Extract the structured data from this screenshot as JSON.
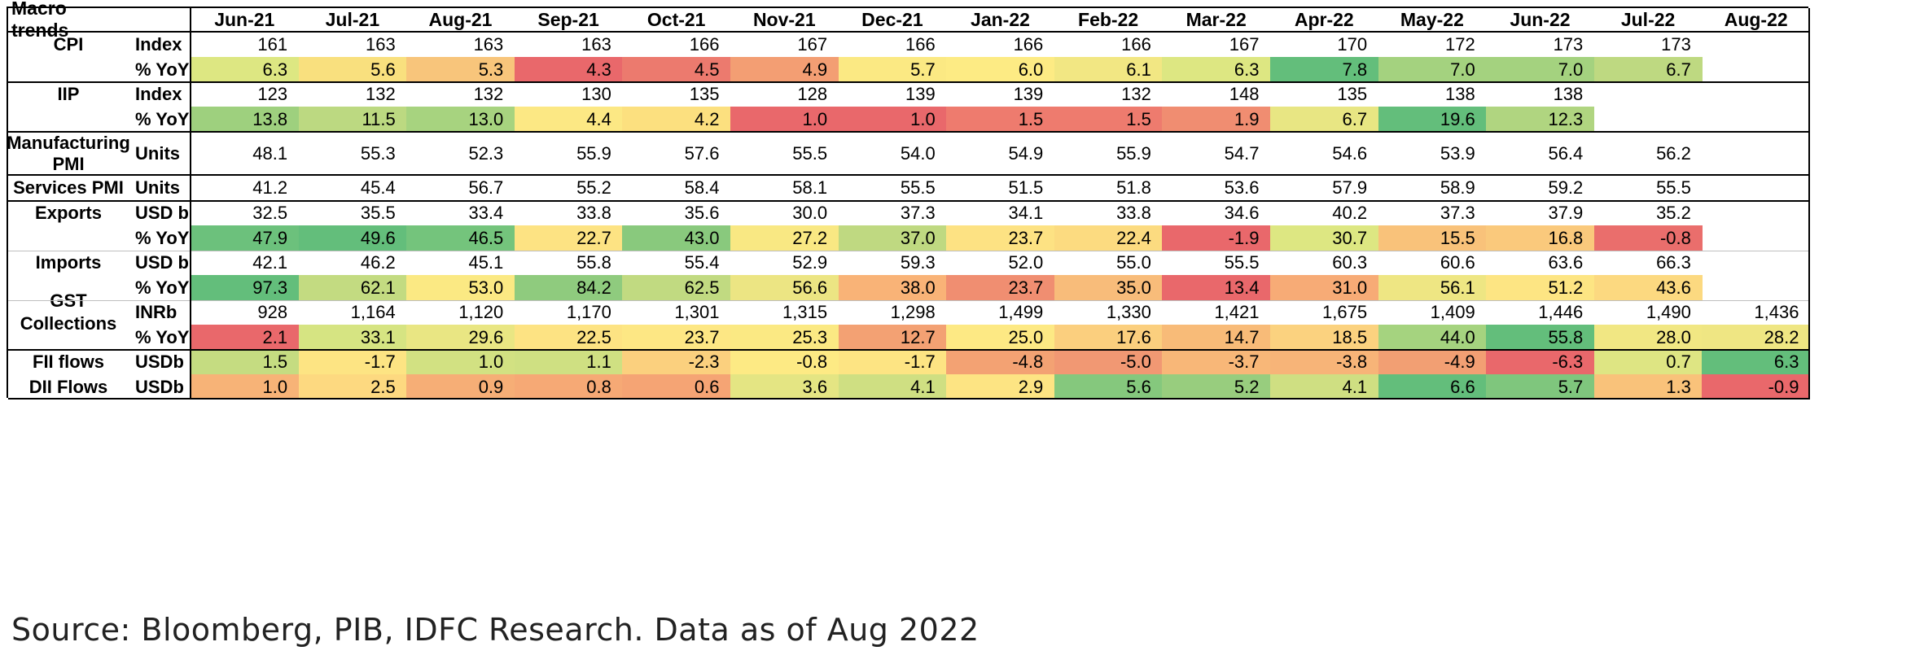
{
  "table": {
    "corner_label": "Macro trends",
    "months": [
      "Jun-21",
      "Jul-21",
      "Aug-21",
      "Sep-21",
      "Oct-21",
      "Nov-21",
      "Dec-21",
      "Jan-22",
      "Feb-22",
      "Mar-22",
      "Apr-22",
      "May-22",
      "Jun-22",
      "Jul-22",
      "Aug-22"
    ],
    "rows": [
      {
        "group": "CPI",
        "unit": "Index",
        "values": [
          "161",
          "163",
          "163",
          "163",
          "166",
          "167",
          "166",
          "166",
          "166",
          "167",
          "170",
          "172",
          "173",
          "173",
          ""
        ],
        "colors": [
          "",
          "",
          "",
          "",
          "",
          "",
          "",
          "",
          "",
          "",
          "",
          "",
          "",
          "",
          ""
        ]
      },
      {
        "group": "",
        "unit": "% YoY",
        "values": [
          "6.3",
          "5.6",
          "5.3",
          "4.3",
          "4.5",
          "4.9",
          "5.7",
          "6.0",
          "6.1",
          "6.3",
          "7.8",
          "7.0",
          "7.0",
          "6.7",
          ""
        ],
        "colors": [
          "#dde782",
          "#f9e07e",
          "#f8c57b",
          "#e9686b",
          "#ec7a6e",
          "#f39e73",
          "#fbe983",
          "#fdeb84",
          "#f2e783",
          "#dde782",
          "#63be7b",
          "#a4d27f",
          "#a4d27f",
          "#bed981",
          ""
        ]
      },
      {
        "group": "IIP",
        "unit": "Index",
        "values": [
          "123",
          "132",
          "132",
          "130",
          "135",
          "128",
          "139",
          "139",
          "132",
          "148",
          "135",
          "138",
          "138",
          "",
          ""
        ],
        "colors": [
          "",
          "",
          "",
          "",
          "",
          "",
          "",
          "",
          "",
          "",
          "",
          "",
          "",
          "",
          ""
        ]
      },
      {
        "group": "",
        "unit": "% YoY",
        "values": [
          "13.8",
          "11.5",
          "13.0",
          "4.4",
          "4.2",
          "1.0",
          "1.0",
          "1.5",
          "1.5",
          "1.9",
          "6.7",
          "19.6",
          "12.3",
          "",
          ""
        ],
        "colors": [
          "#9ed07e",
          "#bcd981",
          "#a7d37f",
          "#fce884",
          "#fce07f",
          "#e9686b",
          "#e9686b",
          "#ee7b6e",
          "#ee7b6e",
          "#f08d71",
          "#e8e683",
          "#63be7b",
          "#b0d580",
          "",
          ""
        ]
      },
      {
        "group": "Manufacturing PMI",
        "unit": "Units",
        "values": [
          "48.1",
          "55.3",
          "52.3",
          "55.9",
          "57.6",
          "55.5",
          "54.0",
          "54.9",
          "55.9",
          "54.7",
          "54.6",
          "53.9",
          "56.4",
          "56.2",
          ""
        ],
        "colors": [
          "",
          "",
          "",
          "",
          "",
          "",
          "",
          "",
          "",
          "",
          "",
          "",
          "",
          "",
          ""
        ]
      },
      {
        "group": "Services PMI",
        "unit": "Units",
        "values": [
          "41.2",
          "45.4",
          "56.7",
          "55.2",
          "58.4",
          "58.1",
          "55.5",
          "51.5",
          "51.8",
          "53.6",
          "57.9",
          "58.9",
          "59.2",
          "55.5",
          ""
        ],
        "colors": [
          "",
          "",
          "",
          "",
          "",
          "",
          "",
          "",
          "",
          "",
          "",
          "",
          "",
          "",
          ""
        ]
      },
      {
        "group": "Exports",
        "unit": "USD b",
        "values": [
          "32.5",
          "35.5",
          "33.4",
          "33.8",
          "35.6",
          "30.0",
          "37.3",
          "34.1",
          "33.8",
          "34.6",
          "40.2",
          "37.3",
          "37.9",
          "35.2",
          ""
        ],
        "colors": [
          "",
          "",
          "",
          "",
          "",
          "",
          "",
          "",
          "",
          "",
          "",
          "",
          "",
          "",
          ""
        ]
      },
      {
        "group": "",
        "unit": "% YoY",
        "values": [
          "47.9",
          "49.6",
          "46.5",
          "22.7",
          "43.0",
          "27.2",
          "37.0",
          "23.7",
          "22.4",
          "-1.9",
          "30.7",
          "15.5",
          "16.8",
          "-0.8",
          ""
        ],
        "colors": [
          "#6cc17c",
          "#63be7b",
          "#74c47c",
          "#fde383",
          "#89c97d",
          "#f9e883",
          "#bfd981",
          "#fde283",
          "#fcdb80",
          "#e9686b",
          "#dde782",
          "#f9c27a",
          "#fac97c",
          "#ea6e6c",
          ""
        ]
      },
      {
        "group": "Imports",
        "unit": "USD b",
        "values": [
          "42.1",
          "46.2",
          "45.1",
          "55.8",
          "55.4",
          "52.9",
          "59.3",
          "52.0",
          "55.0",
          "55.5",
          "60.3",
          "60.6",
          "63.6",
          "66.3",
          ""
        ],
        "colors": [
          "",
          "",
          "",
          "",
          "",
          "",
          "",
          "",
          "",
          "",
          "",
          "",
          "",
          "",
          ""
        ]
      },
      {
        "group": "",
        "unit": "% YoY",
        "values": [
          "97.3",
          "62.1",
          "53.0",
          "84.2",
          "62.5",
          "56.6",
          "38.0",
          "23.7",
          "35.0",
          "13.4",
          "31.0",
          "56.1",
          "51.2",
          "43.6",
          ""
        ],
        "colors": [
          "#63be7b",
          "#c3db81",
          "#fbe983",
          "#8fcb7e",
          "#c1da81",
          "#ece583",
          "#f9b377",
          "#f08e71",
          "#f8bc7a",
          "#e9686b",
          "#f7ab76",
          "#eee683",
          "#fde583",
          "#fcd980",
          ""
        ]
      },
      {
        "group": "GST Collections",
        "unit": "INRb",
        "values": [
          "928",
          "1,164",
          "1,120",
          "1,170",
          "1,301",
          "1,315",
          "1,298",
          "1,499",
          "1,330",
          "1,421",
          "1,675",
          "1,409",
          "1,446",
          "1,490",
          "1,436"
        ],
        "colors": [
          "",
          "",
          "",
          "",
          "",
          "",
          "",
          "",
          "",
          "",
          "",
          "",
          "",
          "",
          ""
        ]
      },
      {
        "group": "",
        "unit": "% YoY",
        "values": [
          "2.1",
          "33.1",
          "29.6",
          "22.5",
          "23.7",
          "25.3",
          "12.7",
          "25.0",
          "17.6",
          "14.7",
          "18.5",
          "44.0",
          "55.8",
          "28.0",
          "28.2"
        ],
        "colors": [
          "#e9686b",
          "#d6e482",
          "#e9e683",
          "#fde383",
          "#fde784",
          "#fbe983",
          "#f3a173",
          "#fde984",
          "#fbcf7e",
          "#f8bb78",
          "#fbd27f",
          "#a5d37f",
          "#63be7b",
          "#f1e783",
          "#efe683"
        ]
      },
      {
        "group": "FII flows",
        "unit": "USDb",
        "values": [
          "1.5",
          "-1.7",
          "1.0",
          "1.1",
          "-2.3",
          "-0.8",
          "-1.7",
          "-4.8",
          "-5.0",
          "-3.7",
          "-3.8",
          "-4.9",
          "-6.3",
          "0.7",
          "6.3"
        ],
        "colors": [
          "#c5dc81",
          "#fde483",
          "#d2e182",
          "#cfe082",
          "#fbd07e",
          "#fdea84",
          "#fde483",
          "#f3a273",
          "#f19873",
          "#f8b778",
          "#f7b478",
          "#f29f73",
          "#e9686b",
          "#dee583",
          "#63be7b"
        ]
      },
      {
        "group": "DII Flows",
        "unit": "USDb",
        "values": [
          "1.0",
          "2.5",
          "0.9",
          "0.8",
          "0.6",
          "3.6",
          "4.1",
          "2.9",
          "5.6",
          "5.2",
          "4.1",
          "6.6",
          "5.7",
          "1.3",
          "-0.9"
        ],
        "colors": [
          "#f7b377",
          "#fdd980",
          "#f6ae76",
          "#f6a975",
          "#f5a474",
          "#e4e583",
          "#cfdf82",
          "#fde483",
          "#85c87d",
          "#98cd7e",
          "#cfdf82",
          "#63be7b",
          "#7fc67d",
          "#f9c27a",
          "#e9686b"
        ]
      }
    ]
  },
  "source": "Source: Bloomberg, PIB, IDFC Research. Data as of Aug 2022"
}
